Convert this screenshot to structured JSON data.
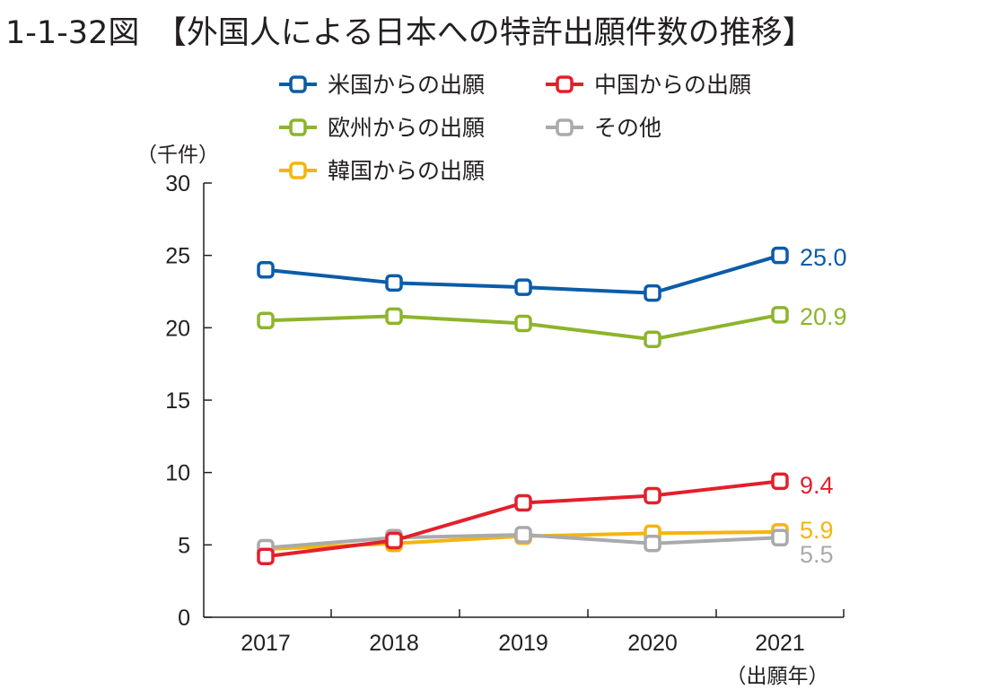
{
  "title": "1-1-32図　【外国人による日本への特許出願件数の推移】",
  "chart_data": {
    "type": "line",
    "title": "1-1-32図　【外国人による日本への特許出願件数の推移】",
    "ylabel": "（千件）",
    "xlabel": "（出願年）",
    "categories": [
      "2017",
      "2018",
      "2019",
      "2020",
      "2021"
    ],
    "ylim": [
      0,
      30
    ],
    "yticks": [
      0,
      5,
      10,
      15,
      20,
      25,
      30
    ],
    "grid": false,
    "legend_placement": "top",
    "series": [
      {
        "name": "米国からの出願",
        "color": "#0b5ca8",
        "values": [
          24.0,
          23.1,
          22.8,
          22.4,
          25.0
        ],
        "end_label": "25.0",
        "legend_row": 0,
        "legend_col": 0
      },
      {
        "name": "中国からの出願",
        "color": "#e2202c",
        "values": [
          4.2,
          5.3,
          7.9,
          8.4,
          9.4
        ],
        "end_label": "9.4",
        "legend_row": 0,
        "legend_col": 1
      },
      {
        "name": "欧州からの出願",
        "color": "#8db42c",
        "values": [
          20.5,
          20.8,
          20.3,
          19.2,
          20.9
        ],
        "end_label": "20.9",
        "legend_row": 1,
        "legend_col": 0
      },
      {
        "name": "その他",
        "color": "#a9aaac",
        "values": [
          4.8,
          5.5,
          5.7,
          5.1,
          5.5
        ],
        "end_label": "5.5",
        "legend_row": 1,
        "legend_col": 1
      },
      {
        "name": "韓国からの出願",
        "color": "#f5b50f",
        "values": [
          4.7,
          5.1,
          5.6,
          5.8,
          5.9
        ],
        "end_label": "5.9",
        "legend_row": 2,
        "legend_col": 0
      }
    ],
    "draw_order": [
      4,
      3,
      1,
      2,
      0
    ]
  }
}
